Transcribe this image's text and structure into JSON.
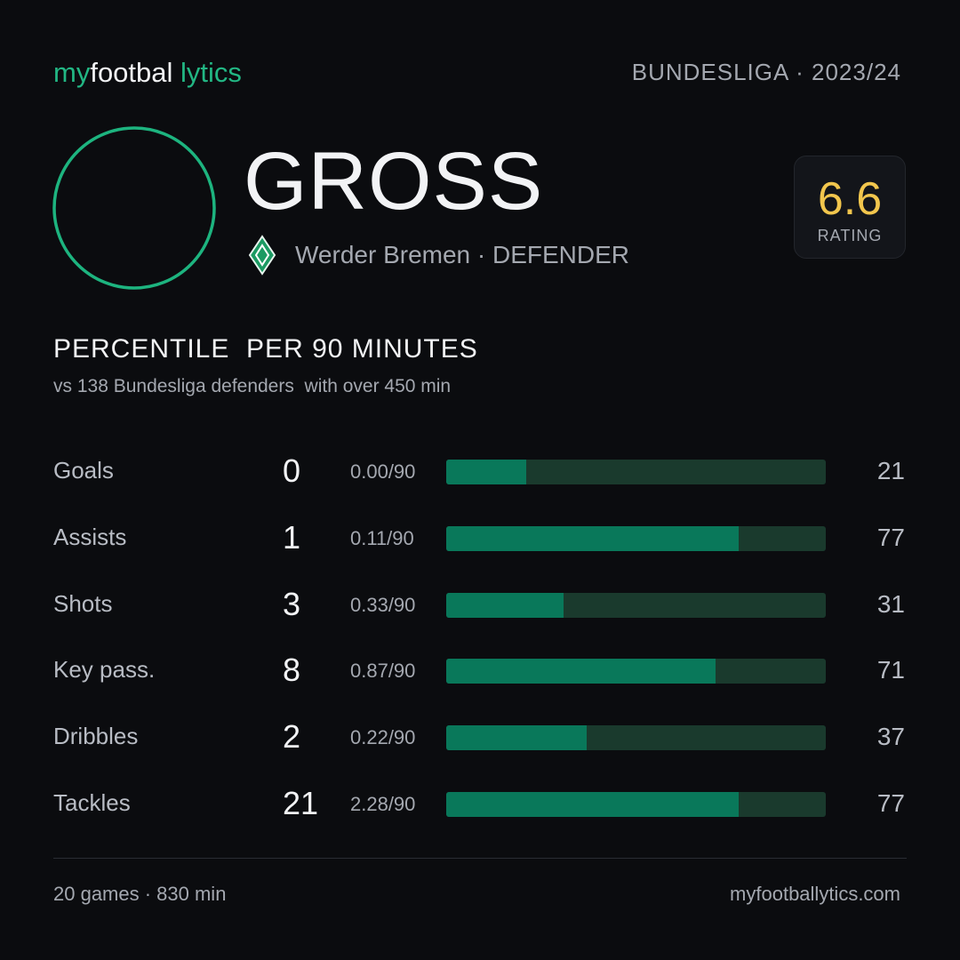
{
  "header": {
    "brand": [
      "my",
      "footbal",
      "lytics"
    ],
    "league": "BUNDESLIGA · 2023/24"
  },
  "player": {
    "name": "GROSS",
    "team_line": "Werder Bremen · DEFENDER"
  },
  "rating": {
    "value": 6.6,
    "label": "RATING"
  },
  "section": {
    "title": "PERCENTILE  PER 90 MINUTES",
    "subtitle": "vs 138 Bundesliga defenders  with over 450 min"
  },
  "rows": [
    {
      "label": "Goals",
      "total": 0,
      "per90": "0.00/90",
      "percentile": 21
    },
    {
      "label": "Assists",
      "total": 1,
      "per90": "0.11/90",
      "percentile": 77
    },
    {
      "label": "Shots",
      "total": 3,
      "per90": "0.33/90",
      "percentile": 31
    },
    {
      "label": "Key pass.",
      "total": 8,
      "per90": "0.87/90",
      "percentile": 71
    },
    {
      "label": "Dribbles",
      "total": 2,
      "per90": "0.22/90",
      "percentile": 37
    },
    {
      "label": "Tackles",
      "total": 21,
      "per90": "2.28/90",
      "percentile": 77
    }
  ],
  "footer": {
    "summary": "20 games · 830 min",
    "site": "myfootballytics.com"
  }
}
